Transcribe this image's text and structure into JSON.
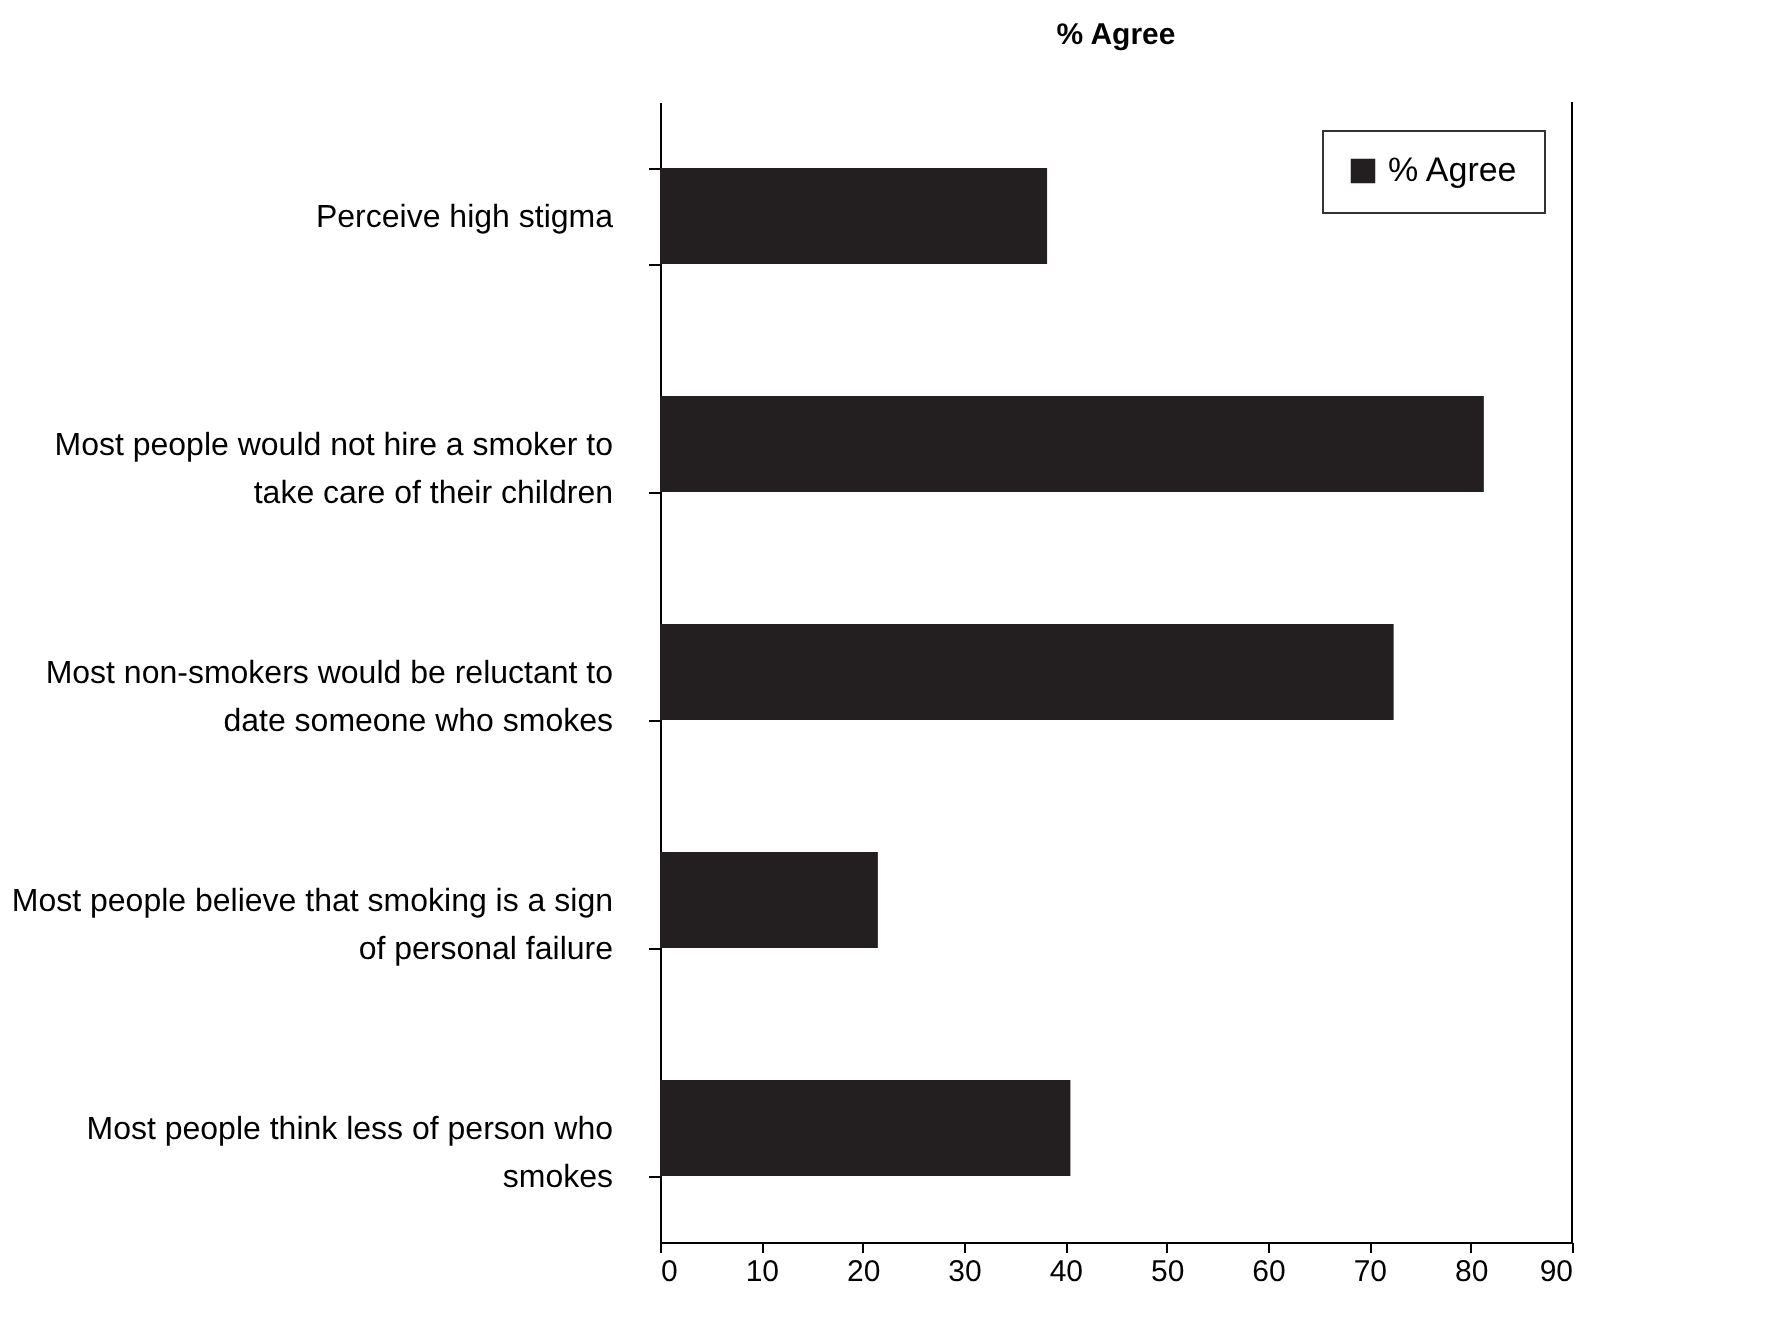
{
  "chart_data": {
    "type": "bar",
    "orientation": "horizontal",
    "title": "% Agree",
    "categories": [
      "Perceive high stigma",
      "Most people would not hire a smoker to take care of their children",
      "Most non-smokers would be reluctant to date someone who smokes",
      "Most people believe that smoking is a sign of personal failure",
      "Most people think less of  person who smokes"
    ],
    "series": [
      {
        "name": "% Agree",
        "color": "#231f20",
        "values": [
          38.2,
          81.3,
          72.4,
          21.5,
          40.5
        ]
      }
    ],
    "xlim": [
      0,
      90
    ],
    "xticks": [
      0,
      10,
      20,
      30,
      40,
      50,
      60,
      70,
      80,
      90
    ],
    "legend": "top right",
    "grid": false
  }
}
